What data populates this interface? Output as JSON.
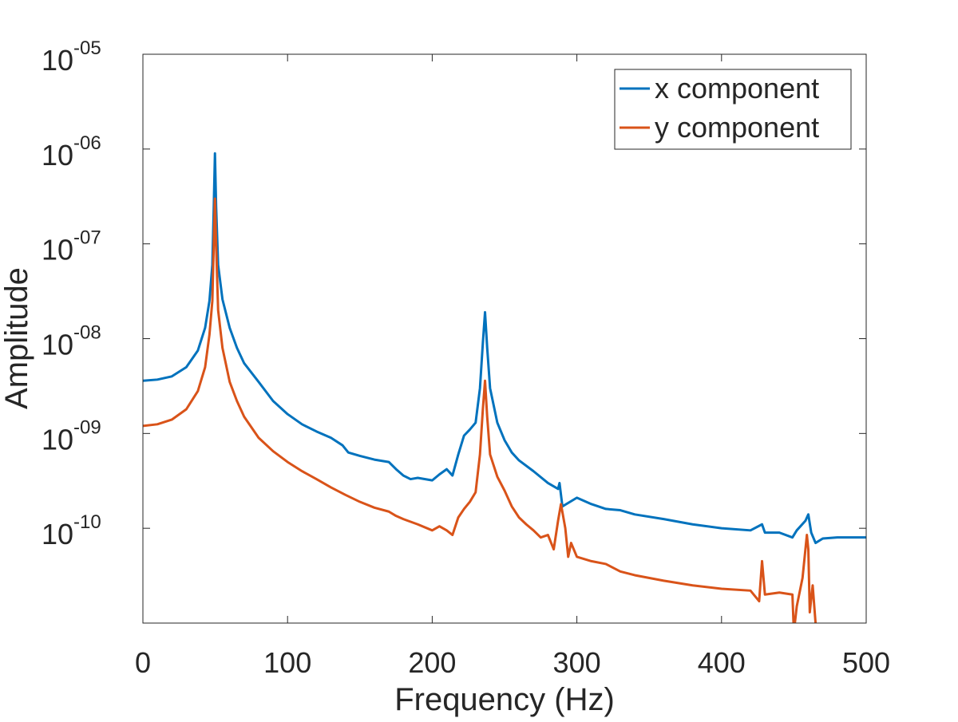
{
  "chart_data": {
    "type": "line",
    "xlabel": "Frequency (Hz)",
    "ylabel": "Amplitude",
    "xlim": [
      0,
      500
    ],
    "ylim": [
      1e-11,
      1e-05
    ],
    "yscale": "log",
    "grid": false,
    "legend_position": "top-right",
    "x_ticks": [
      {
        "value": 0,
        "label": "0"
      },
      {
        "value": 100,
        "label": "100"
      },
      {
        "value": 200,
        "label": "200"
      },
      {
        "value": 300,
        "label": "300"
      },
      {
        "value": 400,
        "label": "400"
      },
      {
        "value": 500,
        "label": "500"
      }
    ],
    "y_ticks": [
      {
        "value": 1e-05,
        "base": "10",
        "exp": "-05"
      },
      {
        "value": 1e-06,
        "base": "10",
        "exp": "-06"
      },
      {
        "value": 1e-07,
        "base": "10",
        "exp": "-07"
      },
      {
        "value": 1e-08,
        "base": "10",
        "exp": "-08"
      },
      {
        "value": 1e-09,
        "base": "10",
        "exp": "-09"
      },
      {
        "value": 1e-10,
        "base": "10",
        "exp": "-10"
      }
    ],
    "series": [
      {
        "name": "x component",
        "color": "#0072BD",
        "points": [
          [
            0,
            3.6e-09
          ],
          [
            10,
            3.7e-09
          ],
          [
            20,
            4e-09
          ],
          [
            30,
            5e-09
          ],
          [
            38,
            7.5e-09
          ],
          [
            43,
            1.3e-08
          ],
          [
            46,
            2.5e-08
          ],
          [
            48,
            6e-08
          ],
          [
            49,
            2.5e-07
          ],
          [
            49.8,
            9e-07
          ],
          [
            50.6,
            2.5e-07
          ],
          [
            52,
            6e-08
          ],
          [
            55,
            2.6e-08
          ],
          [
            60,
            1.3e-08
          ],
          [
            65,
            8e-09
          ],
          [
            70,
            5.5e-09
          ],
          [
            80,
            3.5e-09
          ],
          [
            90,
            2.2e-09
          ],
          [
            100,
            1.6e-09
          ],
          [
            110,
            1.25e-09
          ],
          [
            120,
            1.05e-09
          ],
          [
            130,
            9e-10
          ],
          [
            138,
            7.5e-10
          ],
          [
            142,
            6.3e-10
          ],
          [
            150,
            5.8e-10
          ],
          [
            160,
            5.3e-10
          ],
          [
            170,
            5e-10
          ],
          [
            175,
            4.2e-10
          ],
          [
            180,
            3.6e-10
          ],
          [
            185,
            3.3e-10
          ],
          [
            190,
            3.4e-10
          ],
          [
            200,
            3.2e-10
          ],
          [
            205,
            3.7e-10
          ],
          [
            210,
            4.2e-10
          ],
          [
            214,
            3.6e-10
          ],
          [
            218,
            6e-10
          ],
          [
            222,
            9.5e-10
          ],
          [
            226,
            1.1e-09
          ],
          [
            230,
            1.3e-09
          ],
          [
            233,
            3e-09
          ],
          [
            235,
            9e-09
          ],
          [
            236.5,
            1.9e-08
          ],
          [
            238,
            8e-09
          ],
          [
            240,
            3e-09
          ],
          [
            245,
            1.3e-09
          ],
          [
            250,
            8.5e-10
          ],
          [
            255,
            6.3e-10
          ],
          [
            260,
            5.2e-10
          ],
          [
            270,
            4e-10
          ],
          [
            280,
            3e-10
          ],
          [
            287,
            2.6e-10
          ],
          [
            288,
            3e-10
          ],
          [
            290,
            1.7e-10
          ],
          [
            300,
            2.1e-10
          ],
          [
            310,
            1.8e-10
          ],
          [
            320,
            1.6e-10
          ],
          [
            330,
            1.55e-10
          ],
          [
            340,
            1.4e-10
          ],
          [
            360,
            1.25e-10
          ],
          [
            380,
            1.1e-10
          ],
          [
            400,
            1e-10
          ],
          [
            420,
            9.5e-11
          ],
          [
            428,
            1.1e-10
          ],
          [
            430,
            9e-11
          ],
          [
            440,
            9e-11
          ],
          [
            449,
            8e-11
          ],
          [
            452,
            9.5e-11
          ],
          [
            458,
            1.2e-10
          ],
          [
            460,
            1.4e-10
          ],
          [
            462,
            9e-11
          ],
          [
            465,
            7e-11
          ],
          [
            470,
            7.8e-11
          ],
          [
            480,
            8e-11
          ],
          [
            500,
            8e-11
          ]
        ]
      },
      {
        "name": "y component",
        "color": "#D95319",
        "points": [
          [
            0,
            1.2e-09
          ],
          [
            10,
            1.25e-09
          ],
          [
            20,
            1.4e-09
          ],
          [
            30,
            1.8e-09
          ],
          [
            38,
            2.8e-09
          ],
          [
            43,
            5e-09
          ],
          [
            46,
            1.1e-08
          ],
          [
            48,
            2.5e-08
          ],
          [
            49,
            1e-07
          ],
          [
            49.8,
            3e-07
          ],
          [
            50.6,
            1e-07
          ],
          [
            52,
            2e-08
          ],
          [
            55,
            8e-09
          ],
          [
            60,
            3.5e-09
          ],
          [
            65,
            2.2e-09
          ],
          [
            70,
            1.5e-09
          ],
          [
            80,
            9e-10
          ],
          [
            90,
            6.5e-10
          ],
          [
            100,
            5e-10
          ],
          [
            110,
            4e-10
          ],
          [
            120,
            3.3e-10
          ],
          [
            130,
            2.7e-10
          ],
          [
            140,
            2.25e-10
          ],
          [
            150,
            1.9e-10
          ],
          [
            160,
            1.65e-10
          ],
          [
            170,
            1.5e-10
          ],
          [
            175,
            1.35e-10
          ],
          [
            180,
            1.25e-10
          ],
          [
            190,
            1.1e-10
          ],
          [
            200,
            9.5e-11
          ],
          [
            205,
            1.05e-10
          ],
          [
            210,
            9.5e-11
          ],
          [
            214,
            8.5e-11
          ],
          [
            218,
            1.3e-10
          ],
          [
            222,
            1.6e-10
          ],
          [
            226,
            1.9e-10
          ],
          [
            230,
            2.4e-10
          ],
          [
            233,
            6e-10
          ],
          [
            235,
            1.8e-09
          ],
          [
            236.5,
            3.6e-09
          ],
          [
            238,
            1.5e-09
          ],
          [
            240,
            6e-10
          ],
          [
            245,
            3.5e-10
          ],
          [
            250,
            2.5e-10
          ],
          [
            255,
            1.7e-10
          ],
          [
            260,
            1.3e-10
          ],
          [
            265,
            1.1e-10
          ],
          [
            270,
            9.5e-11
          ],
          [
            275,
            8e-11
          ],
          [
            280,
            8.5e-11
          ],
          [
            284,
            6e-11
          ],
          [
            287,
            1.2e-10
          ],
          [
            289,
            1.8e-10
          ],
          [
            292,
            1e-10
          ],
          [
            294,
            5e-11
          ],
          [
            296,
            7e-11
          ],
          [
            300,
            5e-11
          ],
          [
            310,
            4.5e-11
          ],
          [
            320,
            4.2e-11
          ],
          [
            330,
            3.5e-11
          ],
          [
            340,
            3.2e-11
          ],
          [
            360,
            2.8e-11
          ],
          [
            380,
            2.5e-11
          ],
          [
            400,
            2.3e-11
          ],
          [
            420,
            2.2e-11
          ],
          [
            426,
            1.7e-11
          ],
          [
            428,
            4.5e-11
          ],
          [
            430,
            2e-11
          ],
          [
            440,
            2.1e-11
          ],
          [
            449,
            2e-11
          ],
          [
            450,
            8e-12
          ],
          [
            452,
            1.5e-11
          ],
          [
            456,
            3e-11
          ],
          [
            459,
            8.5e-11
          ],
          [
            460,
            6e-11
          ],
          [
            461,
            1.3e-11
          ],
          [
            463,
            2.5e-11
          ],
          [
            465,
            1e-11
          ],
          [
            466,
            8e-12
          ]
        ]
      }
    ]
  }
}
